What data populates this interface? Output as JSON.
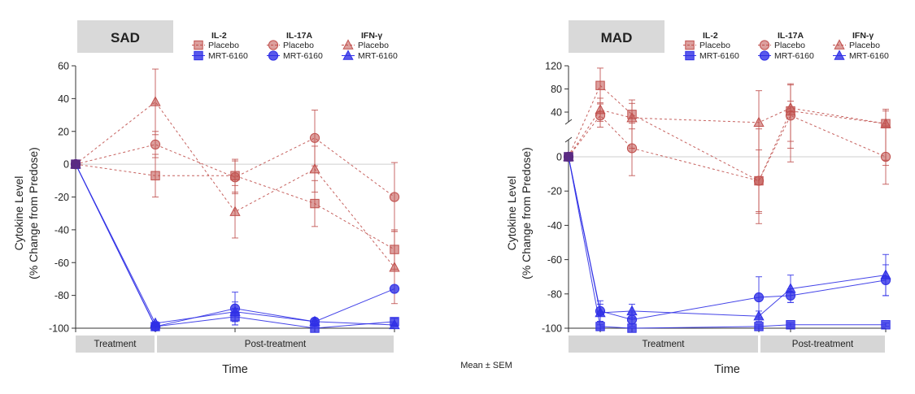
{
  "footnote": "Mean ± SEM",
  "legend_groups": [
    {
      "name": "IL-2",
      "marker": "square"
    },
    {
      "name": "IL-17A",
      "marker": "circle"
    },
    {
      "name": "IFN-γ",
      "marker": "triangle"
    }
  ],
  "legend_entries": [
    "Placebo",
    "MRT-6160"
  ],
  "colors": {
    "placebo": "#c0504d",
    "active": "#2f2fe6",
    "baseline": "#5a2a82",
    "banner": "#d9d9d9",
    "phase": "#d6d6d6"
  },
  "chart_data": [
    {
      "type": "line",
      "title": "SAD",
      "xlabel": "Time",
      "ylabel": "Cytokine Level",
      "ylabel2": "(% Change from Predose)",
      "ylim": [
        -100,
        60
      ],
      "yticks": [
        60,
        40,
        20,
        0,
        -20,
        -40,
        -60,
        -80,
        -100
      ],
      "x": [
        0,
        1,
        2,
        3,
        4
      ],
      "phases": [
        {
          "label": "Treatment",
          "from": 0,
          "to": 1
        },
        {
          "label": "Post-treatment",
          "from": 1,
          "to": 4
        }
      ],
      "series": [
        {
          "name": "IL-2 Placebo",
          "marker": "square",
          "group": "placebo",
          "y": [
            0,
            -7,
            -7,
            -24,
            -52
          ],
          "err": [
            0,
            13,
            10,
            14,
            12
          ]
        },
        {
          "name": "IL-17A Placebo",
          "marker": "circle",
          "group": "placebo",
          "y": [
            0,
            12,
            -8,
            16,
            -20
          ],
          "err": [
            0,
            8,
            10,
            17,
            21
          ]
        },
        {
          "name": "IFN-γ Placebo",
          "marker": "triangle",
          "group": "placebo",
          "y": [
            0,
            38,
            -29,
            -3,
            -63
          ],
          "err": [
            0,
            20,
            16,
            14,
            22
          ]
        },
        {
          "name": "IL-2 MRT-6160",
          "marker": "square",
          "group": "active",
          "y": [
            0,
            -99,
            -93,
            -100,
            -96
          ],
          "err": [
            0,
            1,
            5,
            1,
            2
          ]
        },
        {
          "name": "IL-17A MRT-6160",
          "marker": "circle",
          "group": "active",
          "y": [
            0,
            -99,
            -88,
            -96,
            -76
          ],
          "err": [
            0,
            1,
            10,
            2,
            0
          ]
        },
        {
          "name": "IFN-γ MRT-6160",
          "marker": "triangle",
          "group": "active",
          "y": [
            0,
            -97,
            -90,
            -96,
            -98
          ],
          "err": [
            0,
            1,
            6,
            1,
            1
          ]
        }
      ]
    },
    {
      "type": "line",
      "title": "MAD",
      "xlabel": "Time",
      "ylabel": "Cytokine Level",
      "ylabel2": "(% Change from Predose)",
      "ylim": [
        -100,
        120
      ],
      "axis_break": [
        10,
        30
      ],
      "yticks": [
        120,
        80,
        40,
        0,
        -20,
        -40,
        -60,
        -80,
        -100
      ],
      "x": [
        0,
        1,
        2,
        6,
        7,
        10
      ],
      "phases": [
        {
          "label": "Treatment",
          "from": 0,
          "to": 6
        },
        {
          "label": "Post-treatment",
          "from": 6,
          "to": 10
        }
      ],
      "series": [
        {
          "name": "IL-2 Placebo",
          "marker": "square",
          "group": "placebo",
          "y": [
            0,
            86,
            36,
            -14,
            42,
            20
          ],
          "err": [
            0,
            30,
            25,
            25,
            45,
            25
          ]
        },
        {
          "name": "IL-17A Placebo",
          "marker": "circle",
          "group": "placebo",
          "y": [
            0,
            34,
            5,
            -14,
            34,
            0
          ],
          "err": [
            0,
            20,
            16,
            18,
            25,
            16
          ]
        },
        {
          "name": "IFN-γ Placebo",
          "marker": "triangle",
          "group": "placebo",
          "y": [
            0,
            44,
            30,
            22,
            47,
            20
          ],
          "err": [
            0,
            20,
            25,
            55,
            42,
            22
          ]
        },
        {
          "name": "IL-2 MRT-6160",
          "marker": "square",
          "group": "active",
          "y": [
            0,
            -99,
            -100,
            -99,
            -98,
            -98
          ],
          "err": [
            0,
            1,
            0,
            1,
            1,
            1
          ]
        },
        {
          "name": "IL-17A MRT-6160",
          "marker": "circle",
          "group": "active",
          "y": [
            0,
            -90,
            -95,
            -82,
            -81,
            -72
          ],
          "err": [
            0,
            6,
            4,
            12,
            4,
            9
          ]
        },
        {
          "name": "IFN-γ MRT-6160",
          "marker": "triangle",
          "group": "active",
          "y": [
            0,
            -91,
            -90,
            -93,
            -77,
            -69
          ],
          "err": [
            0,
            5,
            4,
            3,
            8,
            12
          ]
        }
      ]
    }
  ]
}
